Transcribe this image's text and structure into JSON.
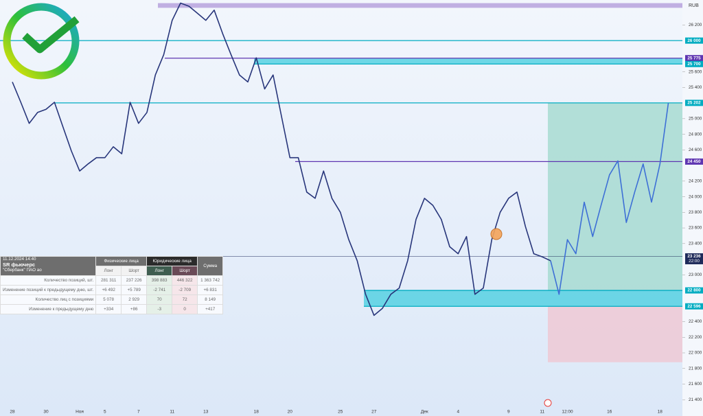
{
  "chart_data": {
    "type": "line",
    "currency": "RUB",
    "categories": [
      "28",
      null,
      null,
      null,
      "30",
      null,
      null,
      null,
      "Ноя",
      null,
      null,
      "5",
      null,
      null,
      null,
      "7",
      null,
      null,
      null,
      "11",
      null,
      null,
      null,
      "13",
      null,
      null,
      null,
      null,
      null,
      "18",
      null,
      null,
      null,
      "20",
      null,
      null,
      null,
      null,
      null,
      "25",
      null,
      null,
      null,
      "27",
      null,
      null,
      null,
      null,
      null,
      "Дек",
      null,
      null,
      null,
      "4",
      null,
      null,
      null,
      null,
      null,
      "9",
      null,
      null,
      null,
      "11",
      null,
      null,
      "12:00",
      null,
      null,
      null,
      null,
      "16",
      null,
      null,
      null,
      null,
      null,
      "18",
      null
    ],
    "series": [
      {
        "color": "#27357a",
        "values": [
          25470,
          25210,
          24940,
          25080,
          25120,
          25210,
          24900,
          24590,
          24330,
          24420,
          24500,
          24500,
          24640,
          24550,
          25210,
          24940,
          25080,
          25560,
          25820,
          26260,
          26480,
          26440,
          26350,
          26260,
          26390,
          26090,
          25820,
          25560,
          25470,
          25780,
          25380,
          25560,
          25030,
          24500,
          24500,
          24060,
          23980,
          24330,
          23980,
          23800,
          23450,
          23180,
          22750,
          22480,
          22570,
          22750,
          22830,
          23180,
          23710,
          23980,
          23890,
          23710,
          23360,
          23270,
          23490,
          22750,
          22830,
          23450,
          23800,
          23980,
          24060,
          23620,
          23270,
          23230,
          23180,
          null,
          null,
          null,
          null,
          null,
          null,
          null,
          null,
          null,
          null,
          null,
          null,
          null,
          null
        ]
      },
      {
        "color": "#3d6fd6",
        "values": [
          null,
          null,
          null,
          null,
          null,
          null,
          null,
          null,
          null,
          null,
          null,
          null,
          null,
          null,
          null,
          null,
          null,
          null,
          null,
          null,
          null,
          null,
          null,
          null,
          null,
          null,
          null,
          null,
          null,
          null,
          null,
          null,
          null,
          null,
          null,
          null,
          null,
          null,
          null,
          null,
          null,
          null,
          null,
          null,
          null,
          null,
          null,
          null,
          null,
          null,
          null,
          null,
          null,
          null,
          null,
          null,
          null,
          null,
          null,
          null,
          null,
          null,
          null,
          null,
          23180,
          22750,
          23450,
          23270,
          23930,
          23490,
          23890,
          24280,
          24460,
          23670,
          24060,
          24420,
          23930,
          24420,
          25200
        ]
      }
    ],
    "ylim": [
      21200,
      26520
    ],
    "yticks": [
      {
        "value": 26200,
        "label": "26 200"
      },
      {
        "value": 25600,
        "label": "25 600"
      },
      {
        "value": 25400,
        "label": "25 400"
      },
      {
        "value": 25000,
        "label": "25 000"
      },
      {
        "value": 24800,
        "label": "24 800"
      },
      {
        "value": 24600,
        "label": "24 600"
      },
      {
        "value": 24200,
        "label": "24 200"
      },
      {
        "value": 24000,
        "label": "24 000"
      },
      {
        "value": 23800,
        "label": "23 800"
      },
      {
        "value": 23600,
        "label": "23 600"
      },
      {
        "value": 23400,
        "label": "23 400"
      },
      {
        "value": 23000,
        "label": "23 000"
      },
      {
        "value": 22400,
        "label": "22 400"
      },
      {
        "value": 22200,
        "label": "22 200"
      },
      {
        "value": 22000,
        "label": "22 000"
      },
      {
        "value": 21800,
        "label": "21 800"
      },
      {
        "value": 21600,
        "label": "21 600"
      },
      {
        "value": 21400,
        "label": "21 400"
      }
    ],
    "levels": [
      {
        "value": 26000,
        "label": "26 000",
        "color": "#00acc1"
      },
      {
        "value": 25775,
        "label": "25 775",
        "color": "#5e35b1"
      },
      {
        "value": 25700,
        "label": "25 700",
        "color": "#00acc1"
      },
      {
        "value": 25202,
        "label": "25 202",
        "color": "#00acc1"
      },
      {
        "value": 24450,
        "label": "24 450",
        "color": "#5e35b1"
      },
      {
        "value": 23236,
        "label": "23 236",
        "time_label": "22:00",
        "color": "#1e2a5a"
      },
      {
        "value": 22800,
        "label": "22 800",
        "color": "#00acc1"
      },
      {
        "value": 22596,
        "label": "22 596",
        "color": "#00acc1"
      }
    ],
    "zones": [
      {
        "from": 26420,
        "to": 26480,
        "color": "#b39ddb"
      },
      {
        "from": 25700,
        "to": 25775,
        "color": "#4dd0e1"
      },
      {
        "from": 22596,
        "to": 22800,
        "color": "#4dd0e1"
      },
      {
        "from": 22800,
        "to": 25202,
        "color": "#9fd8cc"
      },
      {
        "from": 21880,
        "to": 22596,
        "color": "#f0c4cf"
      }
    ]
  },
  "table": {
    "date": "11.12.2024 14:40",
    "title": "SR фьючерс",
    "subtitle": "\"Сбербанк\" ПАО ао",
    "groups": [
      "Физические лица",
      "Юридические лица"
    ],
    "total": "Сумма",
    "columns": [
      "Лонг",
      "Шорт",
      "Лонг",
      "Шорт"
    ],
    "rows": [
      [
        "Количество позиций, шт.",
        "281 311",
        "237 226",
        "398 883",
        "446 322",
        "1 363 742"
      ],
      [
        "Изменение позиций к предыдущему дню, шт.",
        "+6 492",
        "+5 789",
        "-2 741",
        "-2 709",
        "+6 831"
      ],
      [
        "Количество лиц с позициями",
        "5 078",
        "2 929",
        "70",
        "72",
        "8 149"
      ],
      [
        "Изменение к предыдущему дню",
        "+334",
        "+86",
        "-3",
        "0",
        "+417"
      ]
    ]
  }
}
